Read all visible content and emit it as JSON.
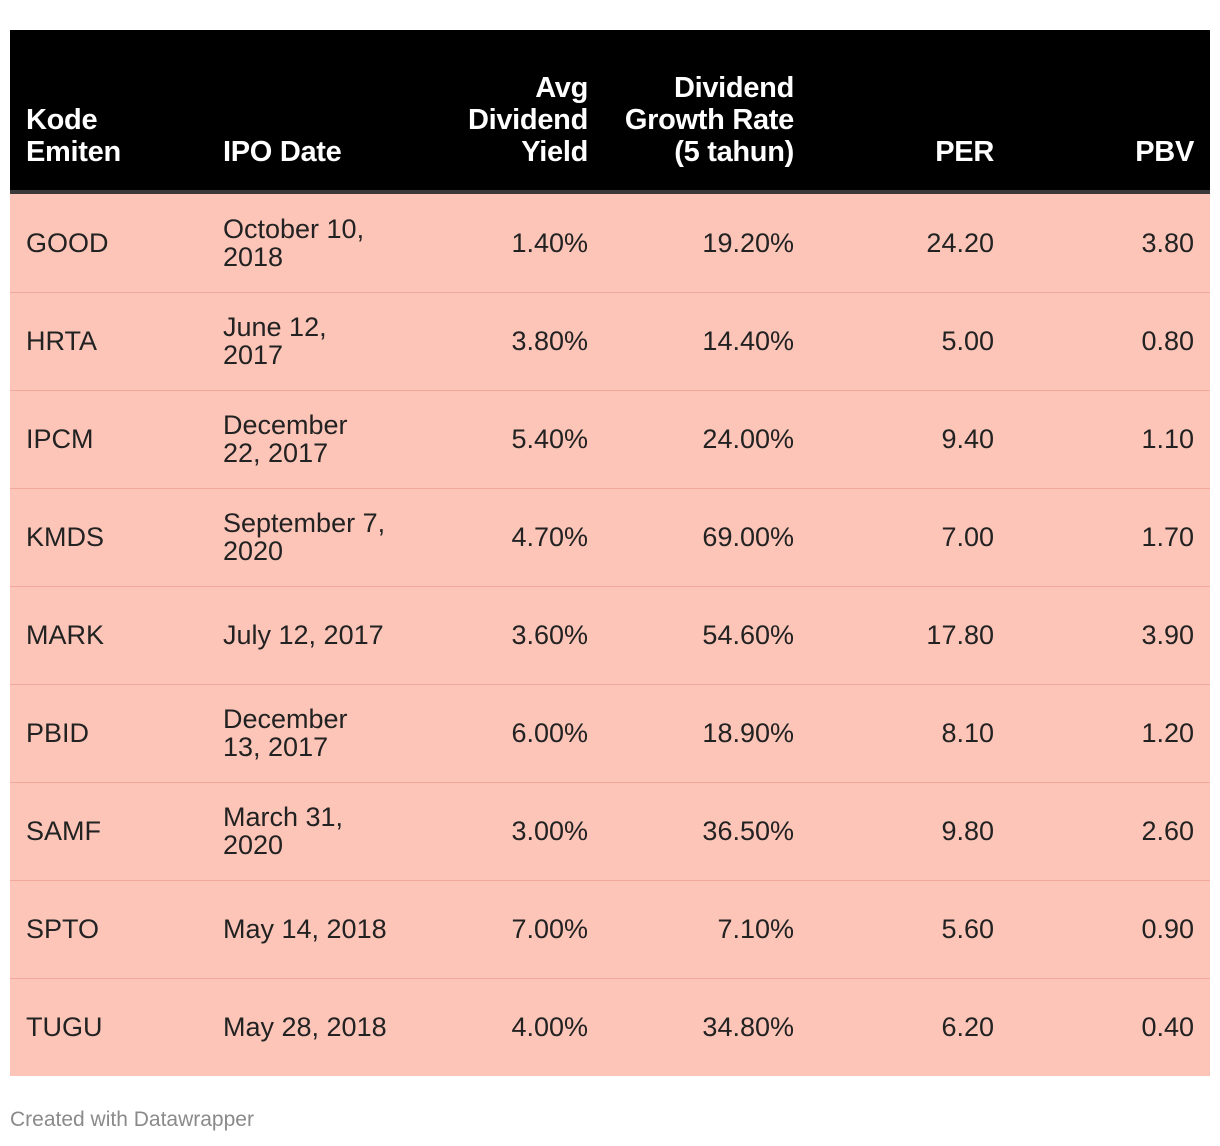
{
  "chart_data": {
    "type": "table",
    "columns": [
      "Kode Emiten",
      "IPO Date",
      "Avg Dividend Yield",
      "Dividend Growth Rate (5 tahun)",
      "PER",
      "PBV"
    ],
    "rows": [
      [
        "GOOD",
        "October 10, 2018",
        "1.40%",
        "19.20%",
        "24.20",
        "3.80"
      ],
      [
        "HRTA",
        "June 12, 2017",
        "3.80%",
        "14.40%",
        "5.00",
        "0.80"
      ],
      [
        "IPCM",
        "December 22, 2017",
        "5.40%",
        "24.00%",
        "9.40",
        "1.10"
      ],
      [
        "KMDS",
        "September 7, 2020",
        "4.70%",
        "69.00%",
        "7.00",
        "1.70"
      ],
      [
        "MARK",
        "July 12, 2017",
        "3.60%",
        "54.60%",
        "17.80",
        "3.90"
      ],
      [
        "PBID",
        "December 13, 2017",
        "6.00%",
        "18.90%",
        "8.10",
        "1.20"
      ],
      [
        "SAMF",
        "March 31, 2020",
        "3.00%",
        "36.50%",
        "9.80",
        "2.60"
      ],
      [
        "SPTO",
        "May 14, 2018",
        "7.00%",
        "7.10%",
        "5.60",
        "0.90"
      ],
      [
        "TUGU",
        "May 28, 2018",
        "4.00%",
        "34.80%",
        "6.20",
        "0.40"
      ]
    ],
    "header_background": "#000000",
    "row_background": "#fcc5b8"
  },
  "footer": {
    "credit": "Created with Datawrapper"
  }
}
